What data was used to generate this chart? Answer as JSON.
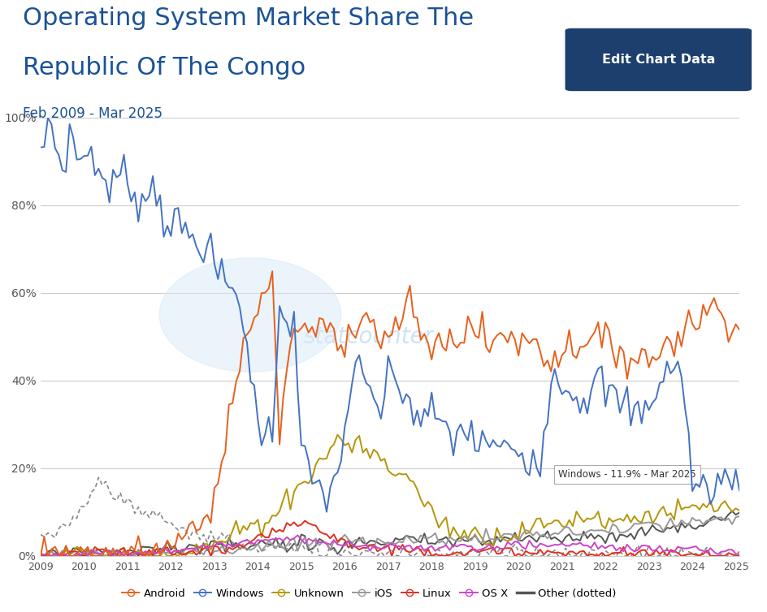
{
  "title_line1": "Operating System Market Share The",
  "title_line2": "Republic Of The Congo",
  "subtitle": "Feb 2009 - Mar 2025",
  "button_text": "Edit Chart Data",
  "watermark": "statcounter",
  "tooltip": "Windows - 11.9% - Mar 2025",
  "colors": {
    "Android": "#e8601c",
    "Windows": "#4472c4",
    "Unknown": "#b5960a",
    "iOS": "#999999",
    "Linux": "#e03020",
    "OSX": "#cc44cc",
    "Other": "#555555"
  },
  "title_color": "#1a5296",
  "subtitle_color": "#1a5296",
  "background_color": "#ffffff",
  "plot_bg_color": "#ffffff",
  "grid_color": "#cccccc",
  "n_points": 194
}
